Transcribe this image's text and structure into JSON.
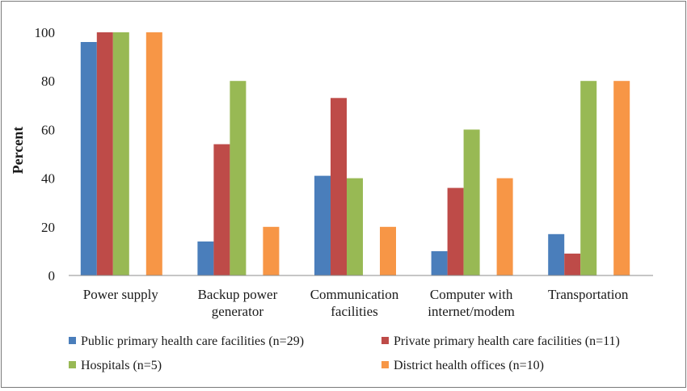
{
  "chart_data": {
    "type": "bar",
    "title": "",
    "xlabel": "",
    "ylabel": "Percent",
    "ylim": [
      0,
      100
    ],
    "yticks": [
      0,
      20,
      40,
      60,
      80,
      100
    ],
    "grid": false,
    "legend_position": "bottom",
    "categories": [
      [
        "Power supply"
      ],
      [
        "Backup power",
        "generator"
      ],
      [
        "Communication",
        "facilities"
      ],
      [
        "Computer with",
        "internet/modem"
      ],
      [
        "Transportation"
      ]
    ],
    "series": [
      {
        "name": "Public primary health care facilities (n=29)",
        "color": "#4a7ebb",
        "values": [
          96,
          14,
          41,
          10,
          17
        ]
      },
      {
        "name": "Private primary health care facilities (n=11)",
        "color": "#be4b48",
        "values": [
          100,
          54,
          73,
          36,
          9
        ]
      },
      {
        "name": "Hospitals (n=5)",
        "color": "#98b954",
        "values": [
          100,
          80,
          40,
          60,
          80
        ]
      },
      {
        "name": "District health offices (n=10)",
        "color": "#f79646",
        "values": [
          100,
          20,
          20,
          40,
          80
        ]
      }
    ]
  }
}
